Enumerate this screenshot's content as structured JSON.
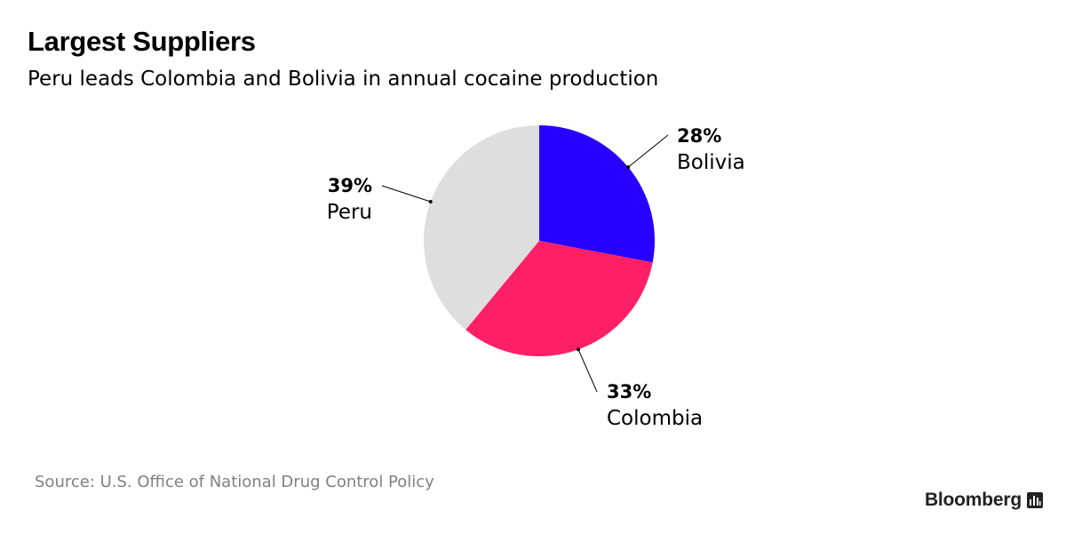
{
  "header": {
    "title": "Largest Suppliers",
    "subtitle": "Peru leads Colombia and Bolivia in annual cocaine production"
  },
  "chart_data": {
    "type": "pie",
    "title": "Largest Suppliers",
    "subtitle": "Peru leads Colombia and Bolivia in annual cocaine production",
    "slices": [
      {
        "label": "Bolivia",
        "value": 28,
        "value_label": "28%",
        "color": "#2800ff"
      },
      {
        "label": "Colombia",
        "value": 33,
        "value_label": "33%",
        "color": "#ff1f66"
      },
      {
        "label": "Peru",
        "value": 39,
        "value_label": "39%",
        "color": "#dedede"
      }
    ],
    "start_angle": "12 o'clock",
    "direction": "clockwise"
  },
  "footer": {
    "source": "Source: U.S. Office of National Drug Control Policy",
    "brand": "Bloomberg",
    "brand_icon": "bloomberg-chart-icon"
  }
}
